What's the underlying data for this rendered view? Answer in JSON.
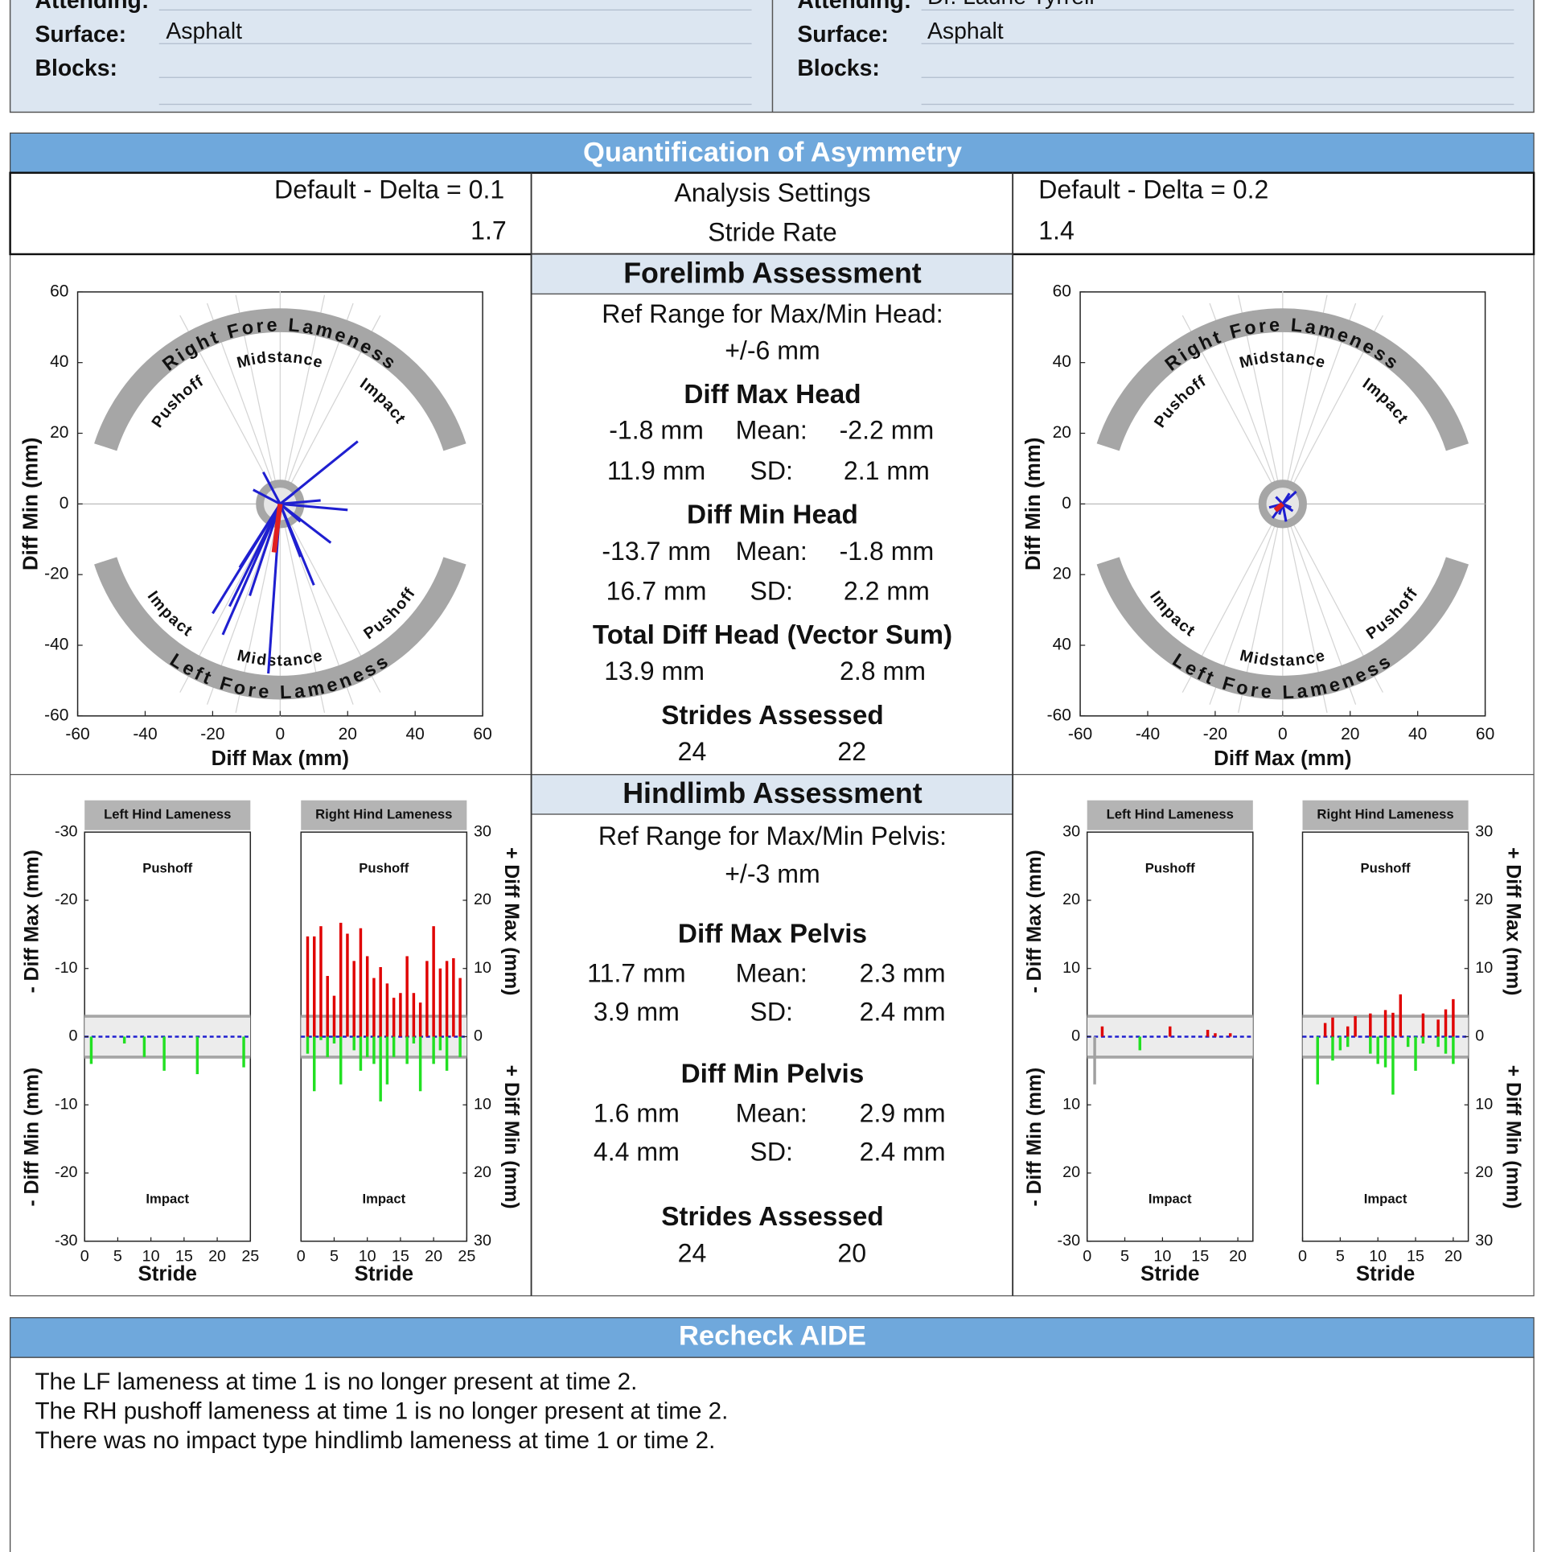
{
  "header": {
    "left": {
      "attending_label": "Attending:",
      "surface_label": "Surface:",
      "surface": "Asphalt",
      "blocks_label": "Blocks:"
    },
    "right": {
      "attending_label": "Attending:",
      "attending": "Dr. Laurie Tyrrell",
      "surface_label": "Surface:",
      "surface": "Asphalt",
      "blocks_label": "Blocks:"
    }
  },
  "asymmetry": {
    "title": "Quantification of Asymmetry",
    "left_settings": "Default - Delta = 0.1",
    "left_stride_rate": "1.7",
    "settings_label": "Analysis Settings",
    "stride_rate_label": "Stride Rate",
    "right_settings": "Default - Delta = 0.2",
    "right_stride_rate": "1.4"
  },
  "forelimb": {
    "title": "Forelimb Assessment",
    "ref_label": "Ref Range for Max/Min Head:",
    "ref_range": "+/-6 mm",
    "diff_max_title": "Diff Max Head",
    "diff_max": [
      [
        "-1.8 mm",
        "Mean:",
        "-2.2 mm"
      ],
      [
        "11.9 mm",
        "SD:",
        "2.1 mm"
      ]
    ],
    "diff_min_title": "Diff Min Head",
    "diff_min": [
      [
        "-13.7 mm",
        "Mean:",
        "-1.8 mm"
      ],
      [
        "16.7 mm",
        "SD:",
        "2.2 mm"
      ]
    ],
    "total_title": "Total Diff Head (Vector Sum)",
    "total": [
      "13.9 mm",
      "2.8 mm"
    ],
    "strides_title": "Strides Assessed",
    "strides": [
      "24",
      "22"
    ]
  },
  "hindlimb": {
    "title": "Hindlimb Assessment",
    "ref_label": "Ref Range for Max/Min Pelvis:",
    "ref_range": "+/-3 mm",
    "diff_max_title": "Diff Max Pelvis",
    "diff_max": [
      [
        "11.7 mm",
        "Mean:",
        "2.3 mm"
      ],
      [
        "3.9 mm",
        "SD:",
        "2.4 mm"
      ]
    ],
    "diff_min_title": "Diff Min Pelvis",
    "diff_min": [
      [
        "1.6 mm",
        "Mean:",
        "2.9 mm"
      ],
      [
        "4.4 mm",
        "SD:",
        "2.4 mm"
      ]
    ],
    "strides_title": "Strides Assessed",
    "strides": [
      "24",
      "20"
    ]
  },
  "chart_data": [
    {
      "type": "polar",
      "xlabel": "Diff Max (mm)",
      "ylabel": "Diff Min (mm)",
      "xlim": [
        -60,
        60
      ],
      "ylim": [
        -60,
        60
      ],
      "xticks": [
        -60,
        -40,
        -20,
        0,
        20,
        40,
        60
      ],
      "yticks": [
        60,
        40,
        20,
        0,
        -20,
        -40,
        -60
      ],
      "top_label": "Right Fore Lameness",
      "bottom_label": "Left Fore Lameness",
      "top_phases": [
        "Pushoff",
        "Midstance",
        "Impact"
      ],
      "bottom_phases": [
        "Impact",
        "Midstance",
        "Pushoff"
      ],
      "ref_radius": 6,
      "vectors": {
        "color": "#1f1fd0",
        "x": [
          23,
          20,
          12,
          15,
          10,
          -3.5,
          -17,
          -20,
          -12,
          -5,
          6,
          -9,
          -15,
          6,
          -8,
          4
        ],
        "y": [
          17.7,
          -1.7,
          1,
          -11,
          -23,
          -48,
          -37,
          -31,
          -18,
          9,
          -5,
          -26,
          -29,
          -15,
          4,
          3
        ]
      },
      "mean": {
        "color": "#e02020",
        "x": -1.8,
        "y": -13.7
      }
    },
    {
      "type": "polar",
      "xlabel": "Diff Max (mm)",
      "ylabel": "Diff Min (mm)",
      "xlim": [
        -60,
        60
      ],
      "ylim": [
        -60,
        60
      ],
      "xticks": [
        -60,
        -40,
        -20,
        0,
        20,
        40,
        60
      ],
      "yticks": [
        60,
        40,
        20,
        0,
        {
          "value": -20,
          "label": "20"
        },
        {
          "value": -40,
          "label": "40"
        },
        -60
      ],
      "top_label": "Right Fore Lameness",
      "bottom_label": "Left Fore Lameness",
      "top_phases": [
        "Pushoff",
        "Midstance",
        "Impact"
      ],
      "bottom_phases": [
        "Impact",
        "Midstance",
        "Pushoff"
      ],
      "ref_radius": 6,
      "vectors": {
        "color": "#1f1fd0",
        "x": [
          2,
          -3,
          3,
          -2,
          1,
          -4,
          4,
          -1,
          2.5
        ],
        "y": [
          3,
          -4,
          -2,
          2,
          -5,
          -1,
          3.5,
          -3,
          -1
        ]
      },
      "mean": {
        "color": "#e02020",
        "x": -2.2,
        "y": -1.8
      }
    },
    {
      "type": "bar",
      "title": "Left Hind Lameness",
      "top_label": "Pushoff",
      "bottom_label": "Impact",
      "xlabel": "Stride",
      "ylabel_top": "- Diff Max (mm)",
      "ylabel_bottom": "- Diff Min (mm)",
      "axis_side": "left",
      "xlim": [
        0,
        25
      ],
      "xticks": [
        0,
        5,
        10,
        15,
        20,
        25
      ],
      "ylim": [
        -30,
        30
      ],
      "yticks": [
        {
          "value": 30,
          "label": "-30"
        },
        {
          "value": 20,
          "label": "-20"
        },
        {
          "value": 10,
          "label": "-10"
        },
        0,
        -10,
        -20,
        -30
      ],
      "ref_band": [
        -3,
        3
      ],
      "x": [
        1,
        2,
        3,
        4,
        5,
        6,
        7,
        8,
        9,
        10,
        11,
        12,
        13,
        14,
        15,
        16,
        17,
        18,
        19,
        20,
        21,
        22,
        23,
        24
      ],
      "series": [
        {
          "color": "#22e022",
          "values": [
            -4,
            null,
            null,
            null,
            null,
            -1,
            null,
            null,
            -3,
            null,
            null,
            -5,
            null,
            null,
            null,
            null,
            -5.5,
            null,
            null,
            null,
            null,
            null,
            null,
            -4.5
          ]
        }
      ]
    },
    {
      "type": "bar",
      "title": "Right Hind Lameness",
      "top_label": "Pushoff",
      "bottom_label": "Impact",
      "xlabel": "Stride",
      "ylabel_top": "+ Diff Max (mm)",
      "ylabel_bottom": "+ Diff Min (mm)",
      "axis_side": "right",
      "xlim": [
        0,
        25
      ],
      "xticks": [
        0,
        5,
        10,
        15,
        20,
        25
      ],
      "ylim": [
        -30,
        30
      ],
      "yticks": [
        30,
        20,
        10,
        0,
        {
          "value": -10,
          "label": "10"
        },
        {
          "value": -20,
          "label": "20"
        },
        {
          "value": -30,
          "label": "30"
        }
      ],
      "ref_band": [
        -3,
        3
      ],
      "x": [
        1,
        2,
        3,
        4,
        5,
        6,
        7,
        8,
        9,
        10,
        11,
        12,
        13,
        14,
        15,
        16,
        17,
        18,
        19,
        20,
        21,
        22,
        23,
        24
      ],
      "series": [
        {
          "color": "#e00000",
          "values": [
            14.7,
            14.7,
            16.2,
            8.9,
            6.0,
            16.7,
            15.1,
            11.1,
            15.9,
            11.8,
            8.6,
            10.2,
            7.8,
            5.7,
            6.4,
            11.8,
            6.4,
            5.0,
            11.1,
            16.2,
            10.0,
            11.1,
            11.5,
            8.6
          ]
        },
        {
          "color": "#22e022",
          "values": [
            -2.5,
            -8,
            -0.5,
            -3,
            -1,
            -7,
            null,
            -2,
            -5,
            -3,
            -4,
            -9.5,
            -7,
            -3,
            null,
            -4,
            -1,
            -8,
            null,
            -4,
            -2,
            -5,
            null,
            -3
          ]
        }
      ]
    },
    {
      "type": "bar",
      "title": "Left Hind Lameness",
      "top_label": "Pushoff",
      "bottom_label": "Impact",
      "xlabel": "Stride",
      "ylabel_top": "- Diff Max (mm)",
      "ylabel_bottom": "- Diff Min (mm)",
      "axis_side": "left",
      "xlim": [
        0,
        22
      ],
      "xticks": [
        0,
        5,
        10,
        15,
        20
      ],
      "ylim": [
        -30,
        30
      ],
      "yticks": [
        30,
        20,
        10,
        0,
        {
          "value": -10,
          "label": "10"
        },
        {
          "value": -20,
          "label": "20"
        },
        -30
      ],
      "ref_band": [
        -3,
        3
      ],
      "x": [
        1,
        2,
        3,
        4,
        5,
        6,
        7,
        8,
        9,
        10,
        11,
        12,
        13,
        14,
        15,
        16,
        17,
        18,
        19,
        20
      ],
      "series": [
        {
          "color": "#e00000",
          "values": [
            null,
            1.5,
            null,
            null,
            null,
            null,
            null,
            null,
            null,
            null,
            1.5,
            null,
            null,
            null,
            null,
            1,
            0.5,
            null,
            0.5,
            null
          ]
        },
        {
          "color": "#22e022",
          "values": [
            null,
            null,
            null,
            null,
            null,
            null,
            -2,
            null,
            null,
            null,
            null,
            null,
            null,
            null,
            null,
            null,
            null,
            null,
            null,
            null
          ]
        },
        {
          "color": "#a0a0a0",
          "values": [
            -7,
            null,
            null,
            null,
            null,
            null,
            null,
            null,
            null,
            null,
            null,
            null,
            null,
            null,
            null,
            null,
            null,
            null,
            null,
            null
          ]
        }
      ]
    },
    {
      "type": "bar",
      "title": "Right Hind Lameness",
      "top_label": "Pushoff",
      "bottom_label": "Impact",
      "xlabel": "Stride",
      "ylabel_top": "+ Diff Max (mm)",
      "ylabel_bottom": "+ Diff Min (mm)",
      "axis_side": "right",
      "xlim": [
        0,
        22
      ],
      "xticks": [
        0,
        5,
        10,
        15,
        20
      ],
      "ylim": [
        -30,
        30
      ],
      "yticks": [
        30,
        20,
        10,
        0,
        {
          "value": -10,
          "label": "10"
        },
        {
          "value": -20,
          "label": "20"
        },
        {
          "value": -30,
          "label": "30"
        }
      ],
      "ref_band": [
        -3,
        3
      ],
      "x": [
        1,
        2,
        3,
        4,
        5,
        6,
        7,
        8,
        9,
        10,
        11,
        12,
        13,
        14,
        15,
        16,
        17,
        18,
        19,
        20
      ],
      "series": [
        {
          "color": "#e00000",
          "values": [
            null,
            null,
            2,
            2.8,
            null,
            1.5,
            3,
            null,
            3.4,
            null,
            3.9,
            3.5,
            6.2,
            null,
            null,
            3.4,
            null,
            2.5,
            4,
            5.5
          ]
        },
        {
          "color": "#22e022",
          "values": [
            null,
            -7,
            null,
            -3.5,
            -2,
            -1.5,
            null,
            null,
            -2.5,
            -4,
            -4.5,
            -8.5,
            null,
            -1.5,
            -5,
            -1,
            null,
            -1.5,
            -2.5,
            -4
          ]
        }
      ]
    }
  ],
  "recheck": {
    "title": "Recheck AIDE",
    "lines": [
      "The LF lameness at time 1 is no longer present at time 2.",
      "The RH pushoff lameness at time 1 is no longer present at time 2.",
      "There was no impact type hindlimb lameness at time 1 or time 2."
    ]
  }
}
